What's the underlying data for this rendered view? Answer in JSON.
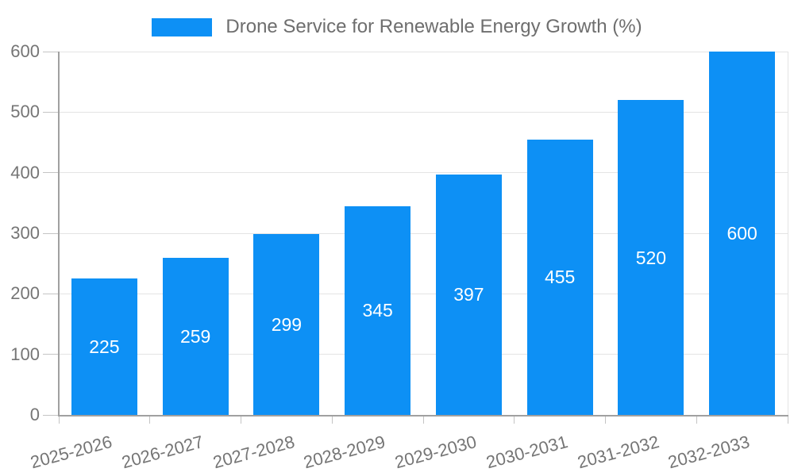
{
  "chart_data": {
    "type": "bar",
    "title": "Drone Service for Renewable Energy Growth (%)",
    "categories": [
      "2025-2026",
      "2026-2027",
      "2027-2028",
      "2028-2029",
      "2029-2030",
      "2030-2031",
      "2031-2032",
      "2032-2033"
    ],
    "values": [
      225,
      259,
      299,
      345,
      397,
      455,
      520,
      600
    ],
    "xlabel": "",
    "ylabel": "",
    "ylim": [
      0,
      600
    ],
    "yticks": [
      0,
      100,
      200,
      300,
      400,
      500,
      600
    ],
    "grid": true,
    "legend_position": "top",
    "value_label_position": "inside-center",
    "x_label_rotation_deg": -15,
    "colors": {
      "bar": "#0d90f5",
      "grid": "#e4e4e4",
      "axis_line": "#a0a0a0",
      "tick_mark": "#c4c4c4",
      "tick_text": "#757575",
      "legend_text": "#6e6e6e",
      "value_label_text": "#ffffff",
      "background": "#ffffff"
    }
  }
}
